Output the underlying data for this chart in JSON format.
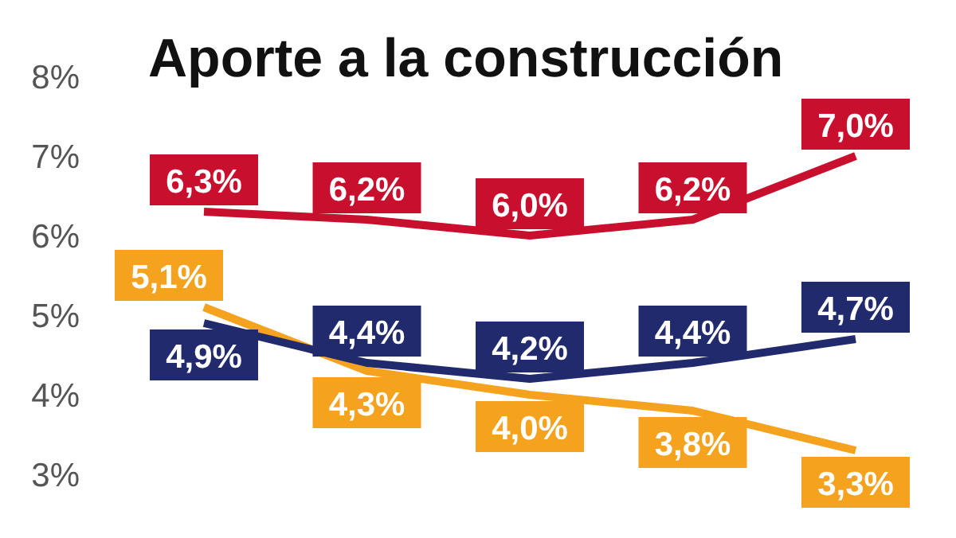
{
  "chart_data": {
    "type": "line",
    "title": "Aporte a la construcción",
    "categories": [
      null,
      null,
      null,
      null,
      null
    ],
    "series": [
      {
        "color": "#c8102e",
        "values": [
          6.3,
          6.2,
          6.0,
          6.2,
          7.0
        ],
        "value_labels": [
          "6,3%",
          "6,2%",
          "6,0%",
          "6,2%",
          "7,0%"
        ]
      },
      {
        "color": "#f5a21e",
        "values": [
          5.1,
          4.3,
          4.0,
          3.8,
          3.3
        ],
        "value_labels": [
          "5,1%",
          "4,3%",
          "4,0%",
          "3,8%",
          "3,3%"
        ]
      },
      {
        "color": "#222a6e",
        "values": [
          4.9,
          4.4,
          4.2,
          4.4,
          4.7
        ],
        "value_labels": [
          "4,9%",
          "4,4%",
          "4,2%",
          "4,4%",
          "4,7%"
        ]
      }
    ],
    "ylim": [
      3,
      8
    ],
    "yticks": [
      {
        "value": 3,
        "label": "3%"
      },
      {
        "value": 4,
        "label": "4%"
      },
      {
        "value": 5,
        "label": "5%"
      },
      {
        "value": 6,
        "label": "6%"
      },
      {
        "value": 7,
        "label": "7%"
      },
      {
        "value": 8,
        "label": "8%"
      }
    ],
    "grid": false,
    "legend": false,
    "marker": "none",
    "line_style": "solid"
  }
}
